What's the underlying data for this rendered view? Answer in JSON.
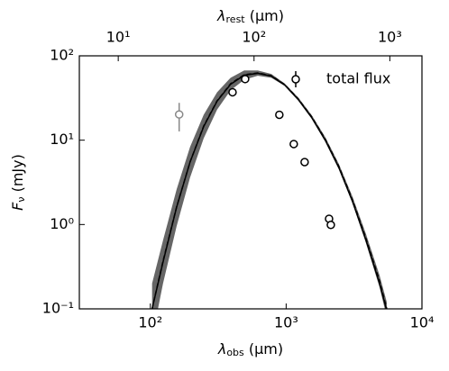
{
  "chart_data": {
    "type": "line",
    "log_x": true,
    "log_y": true,
    "x_label": {
      "symbol": "λ",
      "sub": "obs",
      "unit": " (μm)"
    },
    "y_label": {
      "symbol": "F",
      "sub": "ν",
      "unit": " (mJy)"
    },
    "x2_label": {
      "symbol": "λ",
      "sub": "rest",
      "unit": " (μm)"
    },
    "xlim": [
      30,
      10000
    ],
    "ylim": [
      0.1,
      100
    ],
    "x2lim": [
      5.17,
      1724
    ],
    "xticks": [
      {
        "value": 100,
        "label": "10²"
      },
      {
        "value": 1000,
        "label": "10³"
      },
      {
        "value": 10000,
        "label": "10⁴"
      }
    ],
    "yticks": [
      {
        "value": 0.1,
        "label": "10⁻¹"
      },
      {
        "value": 1,
        "label": "10⁰"
      },
      {
        "value": 10,
        "label": "10¹"
      },
      {
        "value": 100,
        "label": "10²"
      }
    ],
    "x2ticks": [
      {
        "value": 10,
        "label": "10¹"
      },
      {
        "value": 100,
        "label": "10²"
      },
      {
        "value": 1000,
        "label": "10³"
      }
    ],
    "legend": "upper right",
    "band": {
      "color": "#666666",
      "x": [
        103,
        124,
        156,
        196,
        247,
        310,
        390,
        491,
        618,
        777,
        977,
        1230,
        1546,
        1945,
        2447,
        3077,
        3873,
        4873,
        5509
      ],
      "upper": [
        0.2,
        0.65,
        2.6,
        8.3,
        20,
        37,
        55,
        67,
        67,
        61,
        47,
        32,
        19.7,
        10.8,
        5.2,
        2.15,
        0.77,
        0.25,
        0.12
      ],
      "lower": [
        0.045,
        0.2,
        0.95,
        3.6,
        10.5,
        23,
        39,
        52,
        58,
        55,
        44,
        29.5,
        17.9,
        9.6,
        4.5,
        1.8,
        0.6,
        0.18,
        0.08
      ]
    },
    "series": [
      {
        "kind": "line",
        "style": "solid",
        "color": "#000000",
        "x": [
          103,
          124,
          156,
          196,
          247,
          310,
          390,
          491,
          618,
          777,
          977,
          1230,
          1546,
          1945,
          2447,
          3077,
          3873,
          4873,
          5509
        ],
        "values": [
          0.1,
          0.36,
          1.6,
          5.5,
          14.5,
          29,
          46,
          59,
          62,
          57.5,
          45,
          30.2,
          18.4,
          9.9,
          4.7,
          1.88,
          0.65,
          0.2,
          0.095
        ]
      },
      {
        "kind": "line",
        "style": "dashed",
        "color": "#000000",
        "x": [
          103,
          124,
          156,
          196,
          247,
          310,
          390,
          491,
          618,
          777,
          977,
          1230,
          1546,
          1945,
          2447,
          3077,
          3873,
          4873,
          5509
        ],
        "values": [
          0.1,
          0.369,
          1.61,
          5.51,
          14.7,
          29.3,
          46.7,
          59.7,
          62.7,
          58.2,
          45.5,
          30.7,
          18.8,
          10.2,
          4.86,
          1.96,
          0.68,
          0.214,
          0.1
        ]
      },
      {
        "kind": "points",
        "color": "#888888",
        "x": [
          163
        ],
        "values": [
          20.2
        ],
        "errors": [
          7.5
        ]
      },
      {
        "kind": "points",
        "name": "total flux",
        "color": "#000000",
        "x": [
          403,
          499,
          891,
          1138,
          1368,
          2070,
          2133
        ],
        "values": [
          37,
          53,
          20,
          9.0,
          5.5,
          1.17,
          0.99
        ],
        "errors": [
          3,
          3,
          1.5,
          0.7,
          0.5,
          0.1,
          0.1
        ]
      }
    ]
  }
}
